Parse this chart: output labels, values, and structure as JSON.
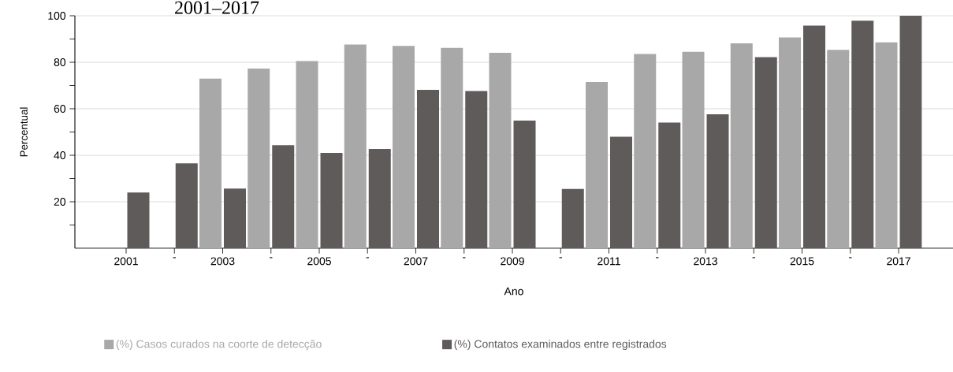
{
  "chart_data": {
    "type": "bar",
    "title": "2001–2017",
    "xlabel": "Ano",
    "ylabel": "Percentual",
    "categories": [
      "2001",
      "-",
      "2003",
      "-",
      "2005",
      "-",
      "2007",
      "-",
      "2009",
      "-",
      "2011",
      "-",
      "2013",
      "-",
      "2015",
      "-",
      "2017"
    ],
    "series": [
      {
        "name": "(%) Casos curados na coorte de detecção",
        "color": "#a8a8a8",
        "values": [
          null,
          null,
          73,
          77.3,
          80.5,
          87.6,
          87,
          86.2,
          84.1,
          null,
          71.5,
          83.6,
          84.5,
          88.1,
          90.7,
          85.3,
          88.6
        ]
      },
      {
        "name": "(%) Contatos examinados entre registrados",
        "color": "#5f5b5a",
        "values": [
          24,
          36.5,
          25.7,
          44.3,
          41,
          42.7,
          68.1,
          67.6,
          54.9,
          25.5,
          48,
          54.1,
          57.6,
          82.2,
          95.8,
          97.9,
          100
        ]
      }
    ],
    "ylim": [
      0,
      100
    ],
    "yticks": [
      {
        "value": 10,
        "label": null
      },
      20,
      {
        "value": 30,
        "label": null
      },
      40,
      {
        "value": 50,
        "label": null
      },
      60,
      {
        "value": 70,
        "label": null
      },
      80,
      {
        "value": 90,
        "label": null
      },
      100
    ],
    "grid": "y",
    "legend": "bottom"
  }
}
